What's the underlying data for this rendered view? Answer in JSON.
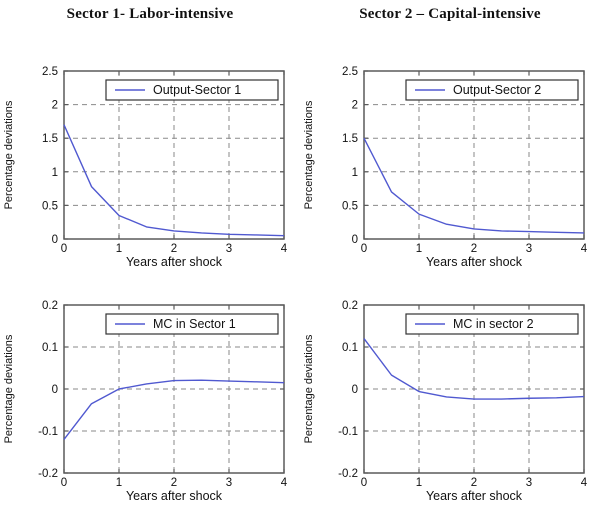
{
  "page": {
    "headers": [
      {
        "text": "Sector 1- Labor-intensive"
      },
      {
        "text": "Sector 2 – Capital-intensive"
      }
    ]
  },
  "colors": {
    "line": "#5059d0",
    "grid": "#8a8a8a",
    "axis": "#5a5a5a",
    "legend_border": "#333333",
    "text": "#111111",
    "background": "#ffffff"
  },
  "chart_data": [
    {
      "type": "line",
      "legend": "Output-Sector 1",
      "xlabel": "Years after shock",
      "ylabel": "Percentage deviations",
      "xlim": [
        0,
        4
      ],
      "ylim": [
        0,
        2.5
      ],
      "xticks": [
        0,
        1,
        2,
        3,
        4
      ],
      "yticks": [
        0,
        0.5,
        1,
        1.5,
        2,
        2.5
      ],
      "x": [
        0,
        0.5,
        1,
        1.5,
        2,
        2.5,
        3,
        3.5,
        4
      ],
      "y": [
        1.7,
        0.78,
        0.35,
        0.18,
        0.12,
        0.09,
        0.07,
        0.06,
        0.05
      ],
      "grid": true,
      "legend_position": "top-right"
    },
    {
      "type": "line",
      "legend": "Output-Sector 2",
      "xlabel": "Years after shock",
      "ylabel": "Percentage deviations",
      "xlim": [
        0,
        4
      ],
      "ylim": [
        0,
        2.5
      ],
      "xticks": [
        0,
        1,
        2,
        3,
        4
      ],
      "yticks": [
        0,
        0.5,
        1,
        1.5,
        2,
        2.5
      ],
      "x": [
        0,
        0.5,
        1,
        1.5,
        2,
        2.5,
        3,
        3.5,
        4
      ],
      "y": [
        1.5,
        0.7,
        0.37,
        0.22,
        0.15,
        0.12,
        0.11,
        0.1,
        0.09
      ],
      "grid": true,
      "legend_position": "top-right"
    },
    {
      "type": "line",
      "legend": "MC in Sector 1",
      "xlabel": "Years after shock",
      "ylabel": "Percentage deviations",
      "xlim": [
        0,
        4
      ],
      "ylim": [
        -0.2,
        0.2
      ],
      "xticks": [
        0,
        1,
        2,
        3,
        4
      ],
      "yticks": [
        -0.2,
        -0.1,
        0,
        0.1,
        0.2
      ],
      "x": [
        0,
        0.5,
        1,
        1.5,
        2,
        2.5,
        3,
        3.5,
        4
      ],
      "y": [
        -0.12,
        -0.035,
        0,
        0.012,
        0.02,
        0.021,
        0.019,
        0.017,
        0.015
      ],
      "grid": true,
      "legend_position": "top-right"
    },
    {
      "type": "line",
      "legend": "MC in sector 2",
      "xlabel": "Years after shock",
      "ylabel": "Percentage deviations",
      "xlim": [
        0,
        4
      ],
      "ylim": [
        -0.2,
        0.2
      ],
      "xticks": [
        0,
        1,
        2,
        3,
        4
      ],
      "yticks": [
        -0.2,
        -0.1,
        0,
        0.1,
        0.2
      ],
      "x": [
        0,
        0.5,
        1,
        1.5,
        2,
        2.5,
        3,
        3.5,
        4
      ],
      "y": [
        0.12,
        0.033,
        -0.006,
        -0.019,
        -0.024,
        -0.024,
        -0.022,
        -0.021,
        -0.018
      ],
      "grid": true,
      "legend_position": "top-right"
    }
  ]
}
